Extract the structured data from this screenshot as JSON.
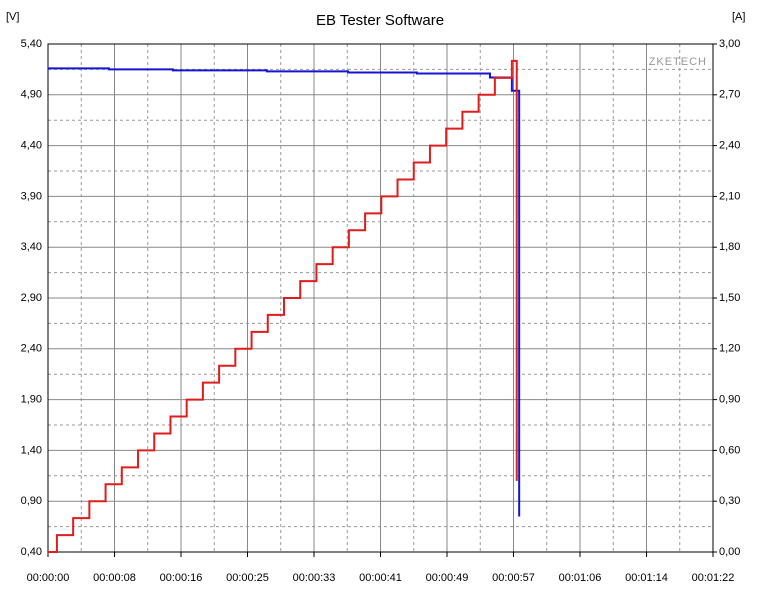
{
  "chart_data": {
    "type": "line",
    "title": "EB Tester Software",
    "watermark": "ZKETECH",
    "ylabel": "[V]",
    "y2label": "[A]",
    "step": true,
    "grid": true,
    "minor_grid": true,
    "xlim": [
      0,
      82
    ],
    "xticks": [
      {
        "value": 0,
        "label": "00:00:00"
      },
      {
        "value": 8.2,
        "label": "00:00:08"
      },
      {
        "value": 16.4,
        "label": "00:00:16"
      },
      {
        "value": 24.6,
        "label": "00:00:25"
      },
      {
        "value": 32.8,
        "label": "00:00:33"
      },
      {
        "value": 41,
        "label": "00:00:41"
      },
      {
        "value": 49.2,
        "label": "00:00:49"
      },
      {
        "value": 57.4,
        "label": "00:00:57"
      },
      {
        "value": 65.6,
        "label": "00:01:06"
      },
      {
        "value": 73.8,
        "label": "00:01:14"
      },
      {
        "value": 82,
        "label": "00:01:22"
      }
    ],
    "ylim": [
      0.4,
      5.4
    ],
    "yticks": [
      {
        "value": 0.4,
        "label": "0,40"
      },
      {
        "value": 0.9,
        "label": "0,90"
      },
      {
        "value": 1.4,
        "label": "1,40"
      },
      {
        "value": 1.9,
        "label": "1,90"
      },
      {
        "value": 2.4,
        "label": "2,40"
      },
      {
        "value": 2.9,
        "label": "2,90"
      },
      {
        "value": 3.4,
        "label": "3,40"
      },
      {
        "value": 3.9,
        "label": "3,90"
      },
      {
        "value": 4.4,
        "label": "4,40"
      },
      {
        "value": 4.9,
        "label": "4,90"
      },
      {
        "value": 5.4,
        "label": "5,40"
      }
    ],
    "y2lim": [
      0,
      3
    ],
    "y2ticks": [
      {
        "value": 0,
        "label": "0,00"
      },
      {
        "value": 0.3,
        "label": "0,30"
      },
      {
        "value": 0.6,
        "label": "0,60"
      },
      {
        "value": 0.9,
        "label": "0,90"
      },
      {
        "value": 1.2,
        "label": "1,20"
      },
      {
        "value": 1.5,
        "label": "1,50"
      },
      {
        "value": 1.8,
        "label": "1,80"
      },
      {
        "value": 2.1,
        "label": "2,10"
      },
      {
        "value": 2.4,
        "label": "2,40"
      },
      {
        "value": 2.7,
        "label": "2,70"
      },
      {
        "value": 3,
        "label": "3,00"
      }
    ],
    "series": [
      {
        "color": "#1414d2",
        "axis": "y",
        "x": [
          0,
          7.5,
          15.4,
          27,
          37,
          45.5,
          54.5,
          57.2,
          58.1
        ],
        "values": [
          5.16,
          5.15,
          5.14,
          5.13,
          5.12,
          5.11,
          5.07,
          4.94,
          0.75
        ]
      },
      {
        "color": "#e01c1c",
        "axis": "y2",
        "x": [
          0,
          1.1,
          3.1,
          5.1,
          7.1,
          9.1,
          11.1,
          13.1,
          15.1,
          17.1,
          19.1,
          21.1,
          23.1,
          25.1,
          27.1,
          29.1,
          31.1,
          33.1,
          35.1,
          37.1,
          39.1,
          41.1,
          43.1,
          45.1,
          47.1,
          49.1,
          51.1,
          53.1,
          55.1,
          57.2,
          57.8
        ],
        "values": [
          0,
          0.1,
          0.2,
          0.3,
          0.4,
          0.5,
          0.6,
          0.7,
          0.8,
          0.9,
          1.0,
          1.1,
          1.2,
          1.3,
          1.4,
          1.5,
          1.6,
          1.7,
          1.8,
          1.9,
          2.0,
          2.1,
          2.2,
          2.3,
          2.4,
          2.5,
          2.6,
          2.7,
          2.8,
          2.9,
          0.42
        ]
      }
    ]
  }
}
